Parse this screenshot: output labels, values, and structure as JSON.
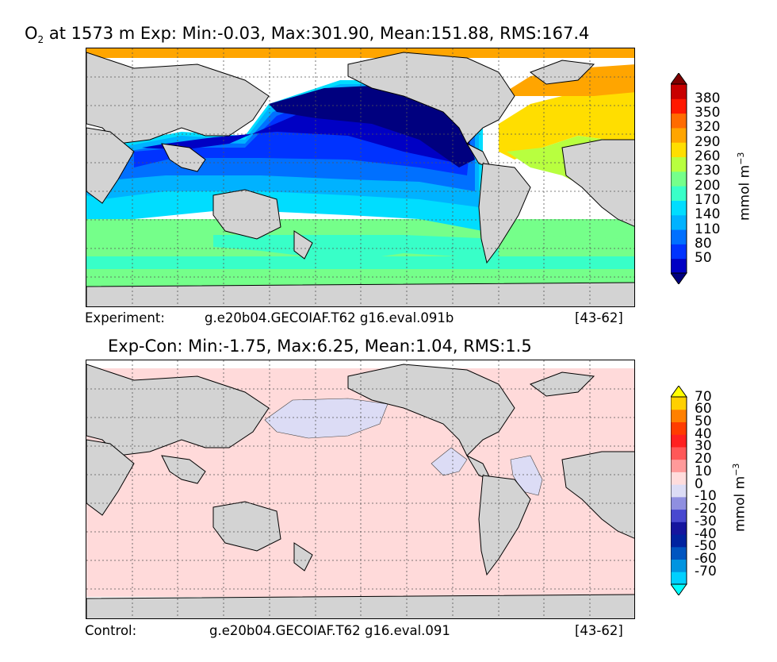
{
  "chart_data": [
    {
      "type": "heatmap",
      "title_prefix": "O",
      "title_sub": "2",
      "title_rest": "at 1573 m Exp: Min:-0.03, Max:301.90, Mean:151.88, RMS:167.4",
      "footer": {
        "label": "Experiment:",
        "run": "g.e20b04.GECOIAF.T62 g16.eval.091b",
        "years": "[43-62]"
      },
      "colorbar": {
        "label": "mmol m",
        "label_sup": "−3",
        "ticks": [
          "50",
          "80",
          "110",
          "140",
          "170",
          "200",
          "230",
          "260",
          "290",
          "320",
          "350",
          "380"
        ],
        "colors": [
          "#00007f",
          "#0000c4",
          "#0033ff",
          "#0070ff",
          "#00b2ff",
          "#00ddff",
          "#38ffc8",
          "#75ff8a",
          "#b8ff3f",
          "#ffde00",
          "#ffa500",
          "#ff6b00",
          "#ff1800",
          "#c80000",
          "#800000"
        ]
      },
      "stats": {
        "min": -0.03,
        "max": 301.9,
        "mean": 151.88,
        "rms": 167.4
      }
    },
    {
      "type": "heatmap",
      "title": "Exp-Con: Min:-1.75, Max:6.25, Mean:1.04, RMS:1.5",
      "footer": {
        "label": "Control:",
        "run": "g.e20b04.GECOIAF.T62 g16.eval.091",
        "years": "[43-62]"
      },
      "colorbar": {
        "label": "mmol m",
        "label_sup": "−3",
        "ticks": [
          "-70",
          "-60",
          "-50",
          "-40",
          "-30",
          "-20",
          "-10",
          "0",
          "10",
          "20",
          "30",
          "40",
          "50",
          "60",
          "70"
        ],
        "colors": [
          "#00ffff",
          "#00d0ff",
          "#0094e0",
          "#0055c0",
          "#0022a0",
          "#15159e",
          "#4848d0",
          "#8f8fe0",
          "#dcdcf5",
          "#ffdcdc",
          "#ff9a9a",
          "#ff5858",
          "#ff2020",
          "#ff3c00",
          "#ff8000",
          "#ffd000",
          "#ffff00"
        ]
      },
      "stats": {
        "min": -1.75,
        "max": 6.25,
        "mean": 1.04,
        "rms": 1.5
      }
    }
  ],
  "colors": {
    "land": "#d3d3d3",
    "ocean_blank": "#ffffff",
    "grid": "#555555",
    "diff_bg": "#ffdada",
    "diff_neg": "#dcdcf5"
  }
}
